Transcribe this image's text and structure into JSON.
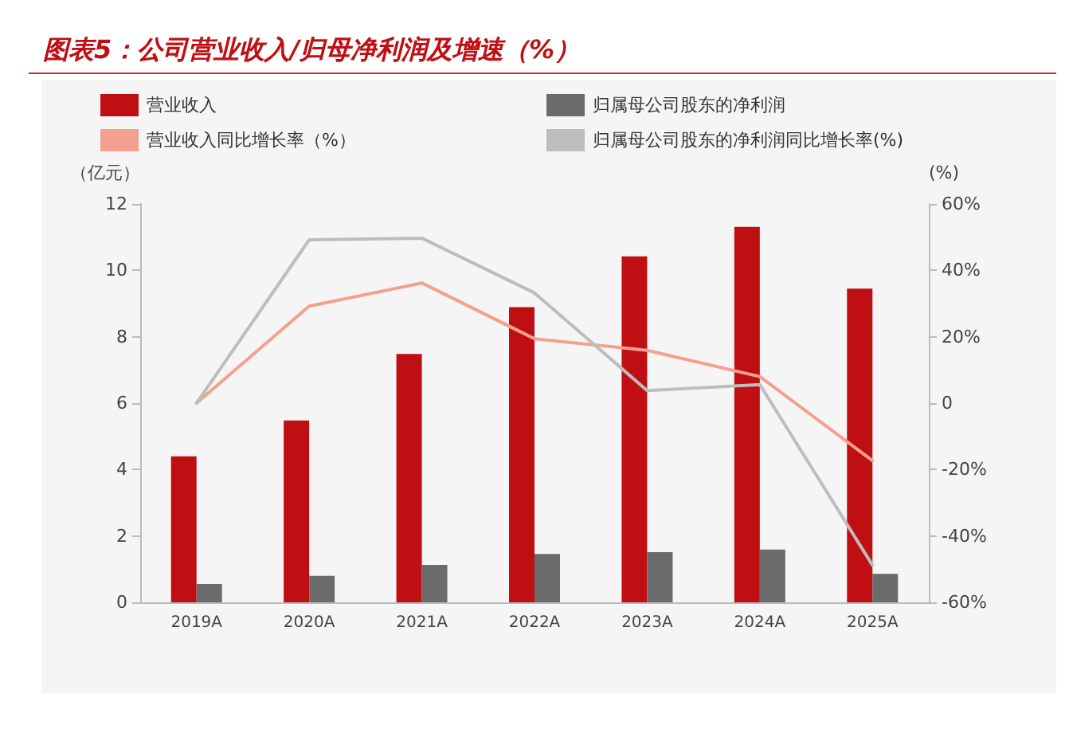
{
  "chart_data": {
    "type": "bar",
    "title": "图表5：公司营业收入/归母净利润及增速（%）",
    "ylabel": "（亿元）",
    "y2label": "(%)",
    "categories": [
      "2019A",
      "2020A",
      "2021A",
      "2022A",
      "2023A",
      "2024A",
      "2025A"
    ],
    "series": [
      {
        "name": "营业收入",
        "color": "#c00f12",
        "values": [
          4.4,
          5.48,
          7.48,
          8.89,
          10.42,
          11.31,
          9.45
        ]
      },
      {
        "name": "归属母公司股东的净利润",
        "color": "#6b6b6b",
        "values": [
          0.55,
          0.8,
          1.13,
          1.46,
          1.51,
          1.59,
          0.86
        ]
      },
      {
        "name": "营业收入同比增长率（%）",
        "type": "line",
        "axis": "y2",
        "color": "#f4a090",
        "values": [
          0,
          29.2,
          36.2,
          19.4,
          15.9,
          8.0,
          -17.3
        ]
      },
      {
        "name": "归属母公司股东的净利润同比增长率(%)",
        "type": "line",
        "axis": "y2",
        "color": "#bdbdbd",
        "values": [
          0,
          49.2,
          49.7,
          33.2,
          3.8,
          5.6,
          -48.8
        ]
      }
    ],
    "ylim": [
      0,
      12
    ],
    "yticks": [
      0,
      2,
      4,
      6,
      8,
      10,
      12
    ],
    "y2lim": [
      -60,
      60
    ],
    "y2ticks": [
      {
        "value": -60,
        "label": "-60%"
      },
      {
        "value": -40,
        "label": "-40%"
      },
      {
        "value": -20,
        "label": "-20%"
      },
      0,
      {
        "value": 20,
        "label": "20%"
      },
      {
        "value": 40,
        "label": "40%"
      },
      {
        "value": 60,
        "label": "60%"
      }
    ],
    "grid": false,
    "legend": "top",
    "marker": "none",
    "line_style": "solid"
  }
}
